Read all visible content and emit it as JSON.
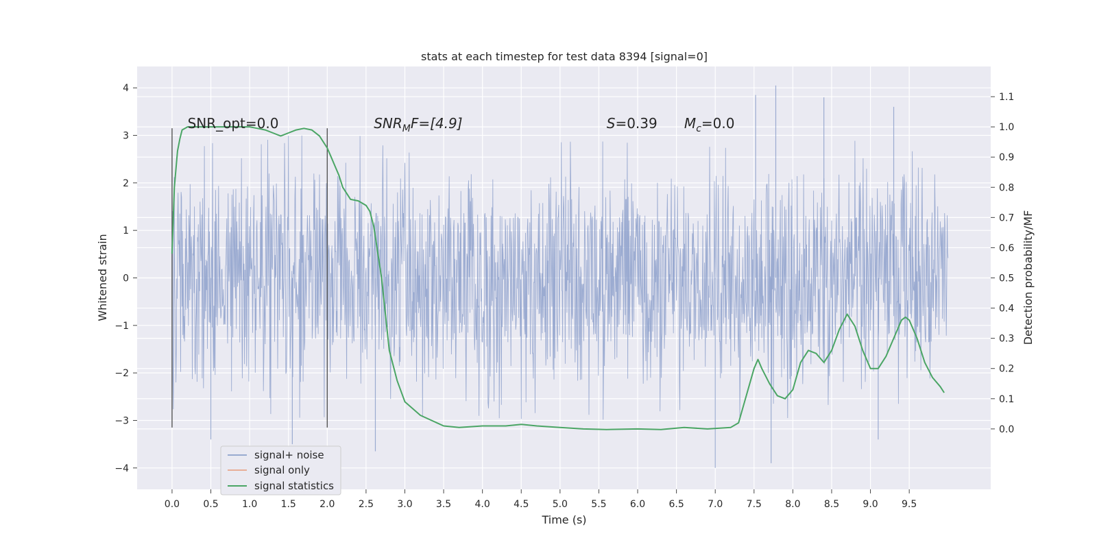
{
  "chart_data": {
    "type": "line",
    "title": "stats at each timestep for test data 8394 [signal=0]",
    "xlabel": "Time (s)",
    "ylabel": "Whitened strain",
    "y2label": "Detection probability/MF",
    "xlim": [
      -0.45,
      10.55
    ],
    "ylim": [
      -4.45,
      4.45
    ],
    "y2lim": [
      -0.2,
      1.2
    ],
    "xticks": [
      "0.0",
      "0.5",
      "1.0",
      "1.5",
      "2.0",
      "2.5",
      "3.0",
      "3.5",
      "4.0",
      "4.5",
      "5.0",
      "5.5",
      "6.0",
      "6.5",
      "7.0",
      "7.5",
      "8.0",
      "8.5",
      "9.0",
      "9.5"
    ],
    "yticks": [
      "4",
      "3",
      "2",
      "1",
      "0",
      "−1",
      "−2",
      "−3",
      "−4"
    ],
    "y2ticks": [
      "1.1",
      "1.0",
      "0.9",
      "0.8",
      "0.7",
      "0.6",
      "0.5",
      "0.4",
      "0.3",
      "0.2",
      "0.1",
      "0.0"
    ],
    "grid": true,
    "legend_position": "lower-left",
    "series": [
      {
        "name": "signal+ noise",
        "color": "#8da0cb",
        "kind": "noise",
        "x_range": [
          0.0,
          10.0
        ],
        "band": [
          -1.3,
          1.3
        ],
        "spike_max": 4.05,
        "spike_min": -4.05
      },
      {
        "name": "signal only",
        "color": "#e8a68a",
        "kind": "line",
        "x": [],
        "y": []
      },
      {
        "name": "signal statistics",
        "color": "#4aa564",
        "kind": "line",
        "axis": "right",
        "x": [
          0.0,
          0.03,
          0.07,
          0.1,
          0.13,
          0.2,
          0.3,
          0.5,
          0.7,
          0.9,
          1.0,
          1.1,
          1.2,
          1.3,
          1.4,
          1.5,
          1.6,
          1.7,
          1.8,
          1.9,
          2.0,
          2.05,
          2.1,
          2.15,
          2.2,
          2.3,
          2.4,
          2.5,
          2.55,
          2.6,
          2.7,
          2.8,
          2.9,
          3.0,
          3.2,
          3.5,
          3.7,
          4.0,
          4.3,
          4.5,
          4.7,
          5.0,
          5.3,
          5.6,
          6.0,
          6.3,
          6.6,
          6.9,
          7.2,
          7.3,
          7.4,
          7.5,
          7.55,
          7.6,
          7.7,
          7.8,
          7.9,
          8.0,
          8.1,
          8.2,
          8.3,
          8.4,
          8.5,
          8.6,
          8.7,
          8.8,
          8.9,
          9.0,
          9.1,
          9.2,
          9.3,
          9.4,
          9.45,
          9.5,
          9.6,
          9.7,
          9.8,
          9.9,
          9.95
        ],
        "y": [
          0.58,
          0.8,
          0.92,
          0.96,
          0.99,
          1.0,
          1.0,
          1.0,
          1.0,
          1.0,
          1.0,
          0.995,
          0.99,
          0.98,
          0.97,
          0.98,
          0.99,
          0.995,
          0.99,
          0.97,
          0.93,
          0.9,
          0.87,
          0.84,
          0.8,
          0.76,
          0.755,
          0.74,
          0.72,
          0.67,
          0.5,
          0.26,
          0.16,
          0.09,
          0.045,
          0.01,
          0.005,
          0.01,
          0.01,
          0.015,
          0.01,
          0.005,
          0.0,
          -0.002,
          0.0,
          -0.002,
          0.005,
          0.0,
          0.005,
          0.02,
          0.11,
          0.2,
          0.23,
          0.2,
          0.15,
          0.11,
          0.1,
          0.13,
          0.22,
          0.26,
          0.25,
          0.22,
          0.26,
          0.33,
          0.38,
          0.34,
          0.26,
          0.2,
          0.2,
          0.24,
          0.3,
          0.36,
          0.37,
          0.36,
          0.3,
          0.22,
          0.17,
          0.14,
          0.12
        ]
      }
    ],
    "vlines": [
      {
        "x": 0.0,
        "y": [
          -3.15,
          3.15
        ],
        "color": "#555555"
      },
      {
        "x": 2.0,
        "y": [
          -3.15,
          3.15
        ],
        "color": "#555555"
      }
    ],
    "annotations": [
      {
        "id": "snr-opt",
        "main": "SNR_opt=0.0",
        "x": 0.2,
        "y": 3.15
      },
      {
        "id": "snr-mf",
        "main": "SNR",
        "sub": "M",
        "tail": "F=[4.9]",
        "italic": true,
        "x": 2.6,
        "y": 3.15
      },
      {
        "id": "s-value",
        "main": "S",
        "tail": "=0.39",
        "italic_main": true,
        "x": 5.6,
        "y": 3.15
      },
      {
        "id": "mc-value",
        "main": "M",
        "sub": "c",
        "tail": "=0.0",
        "italic_main": true,
        "x": 6.6,
        "y": 3.15
      }
    ],
    "colors": {
      "plot_bg": "#eaeaf2",
      "grid": "#ffffff",
      "text": "#262626"
    }
  }
}
